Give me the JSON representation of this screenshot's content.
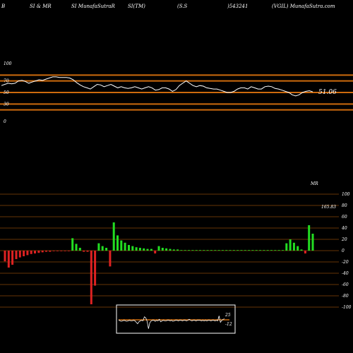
{
  "header": {
    "c1": "B",
    "c2": "SI & MR",
    "c3": "SI MunafaSutraR",
    "c4": "SI(TM)",
    "c5": "(S.S",
    "c6": ")543241",
    "c7": "(VGIL) MunafaSutra.com"
  },
  "colors": {
    "rsi_line": "#ffffff",
    "band": "#cc6a0d",
    "pos_bar": "#22dd22",
    "neg_bar": "#dd2222",
    "grid": "#cc6a0d"
  },
  "chart_data": [
    {
      "type": "line",
      "name": "RSI",
      "ticks": [
        "100",
        "70",
        "50",
        "30",
        "0"
      ],
      "tick_values": [
        100,
        70,
        50,
        30,
        0
      ],
      "bands": [
        80,
        70,
        50,
        30,
        20
      ],
      "ylim": [
        0,
        100
      ],
      "last_value_label": "51.06",
      "values": [
        62,
        64,
        66,
        65,
        66,
        70,
        71,
        69,
        66,
        68,
        70,
        72,
        71,
        73,
        75,
        77,
        77,
        76,
        76,
        76,
        75,
        72,
        67,
        63,
        60,
        58,
        56,
        60,
        64,
        63,
        60,
        62,
        64,
        61,
        58,
        60,
        58,
        57,
        58,
        60,
        58,
        56,
        58,
        60,
        58,
        54,
        55,
        58,
        58,
        56,
        52,
        55,
        62,
        66,
        70,
        66,
        62,
        60,
        62,
        61,
        58,
        57,
        56,
        56,
        54,
        52,
        50,
        50,
        52,
        56,
        58,
        58,
        56,
        60,
        58,
        56,
        56,
        60,
        61,
        60,
        57,
        56,
        54,
        52,
        50,
        46,
        44,
        46,
        50,
        52,
        53,
        51.06
      ]
    },
    {
      "type": "bar",
      "name": "MR",
      "label": "MR",
      "top_value_label": "165.83",
      "ticks": [
        "100",
        "80",
        "60",
        "40",
        "20",
        "0",
        "-20",
        "-40",
        "-60",
        "-80",
        "-100"
      ],
      "tick_values": [
        100,
        80,
        60,
        40,
        20,
        0,
        -20,
        -40,
        -60,
        -80,
        -100
      ],
      "ylim": [
        -100,
        100
      ],
      "values": [
        -19,
        -30,
        -25,
        -15,
        -12,
        -10,
        -8,
        -6,
        -5,
        -4,
        -3,
        -2,
        -2,
        -1,
        -1,
        -1,
        -1,
        -1,
        22,
        12,
        5,
        -2,
        -2,
        -95,
        -62,
        13,
        8,
        5,
        -28,
        50,
        27,
        18,
        14,
        10,
        8,
        6,
        5,
        4,
        3,
        3,
        -5,
        8,
        5,
        4,
        3,
        2,
        2,
        1,
        1,
        1,
        1,
        1,
        1,
        1,
        1,
        1,
        1,
        1,
        1,
        1,
        1,
        1,
        1,
        1,
        1,
        1,
        1,
        1,
        1,
        1,
        1,
        1,
        1,
        1,
        1,
        13,
        20,
        14,
        8,
        2,
        -5,
        45,
        30
      ]
    },
    {
      "type": "line",
      "name": "mini",
      "ticks": [
        "25",
        "-12"
      ],
      "values": [
        0,
        -2,
        -3,
        -2,
        -1,
        -2,
        -3,
        -2,
        -1,
        -2,
        -2,
        -1,
        -2,
        -5,
        -8,
        -4,
        -2,
        -1,
        -2,
        6,
        4,
        -3,
        -18,
        -6,
        -2,
        -1,
        -1,
        -3,
        -1,
        -2,
        1,
        -4,
        -2,
        -1,
        -2,
        -2,
        -1,
        -1,
        -2,
        -1,
        -3,
        -2,
        -1,
        -1,
        -2,
        -1,
        -1,
        -2,
        -1,
        -1,
        -2,
        -1,
        1,
        -1,
        -2,
        -1,
        -1,
        -2,
        -1,
        -1,
        -1,
        -2,
        -1,
        -2,
        -1,
        -2,
        -1,
        -1,
        -2,
        -1,
        -1,
        -2,
        -1,
        -2,
        8,
        -5,
        -1,
        1,
        2
      ]
    }
  ]
}
